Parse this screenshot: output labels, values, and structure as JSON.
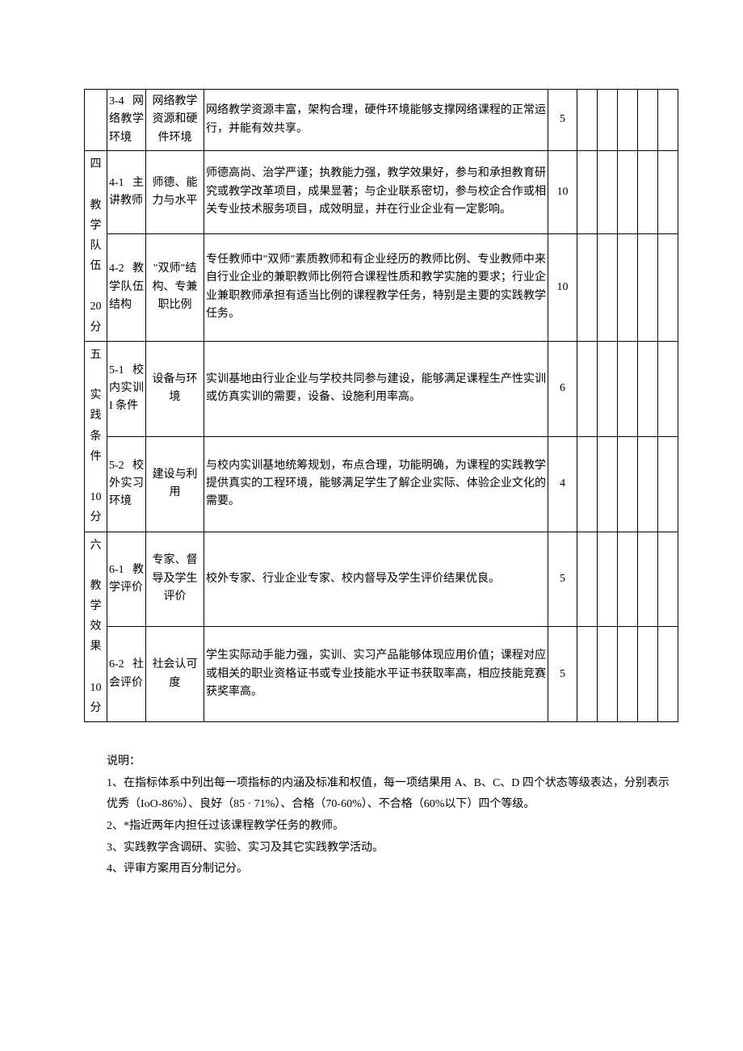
{
  "table": {
    "rows": [
      {
        "category": null,
        "sub": "3-4 网络教学环境",
        "metric": "网络教学资源和硬件环境",
        "desc": "网络教学资源丰富，架构合理，硬件环境能够支撑网络课程的正常运行，并能有效共享。",
        "score": "5"
      },
      {
        "category": "四\n\n教\n学\n队\n伍\n\n20\n分",
        "category_rowspan": 2,
        "sub": "4-1 主讲教师",
        "metric": "师德、能力与水平",
        "desc": "师德高尚、治学严谨；执教能力强，教学效果好，参与和承担教育研究或教学改革项目，成果显著；与企业联系密切，参与校企合作或相关专业技术服务项目，成效明显，并在行业企业有一定影响。",
        "score": "10"
      },
      {
        "category": null,
        "sub": "4-2 教学队伍结构",
        "metric": "\"双师\"结构、专兼职比例",
        "desc": "专任教师中\"双师\"素质教师和有企业经历的教师比例、专业教师中来自行业企业的兼职教师比例符合课程性质和教学实施的要求；行业企业兼职教师承担有适当比例的课程教学任务，特别是主要的实践教学任务。",
        "score": "10"
      },
      {
        "category": "五\n\n实\n践\n条\n件\n\n10\n分",
        "category_rowspan": 2,
        "sub": "5-1 校内实训 I 条件",
        "metric": "设备与环境",
        "desc": "实训基地由行业企业与学校共同参与建设，能够满足课程生产性实训或仿真实训的需要，设备、设施利用率高。",
        "score": "6"
      },
      {
        "category": null,
        "sub": "5-2 校外实习环境",
        "metric": "建设与利用",
        "desc": "与校内实训基地统筹规划，布点合理，功能明确，为课程的实践教学提供真实的工程环境，能够满足学生了解企业实际、体验企业文化的需要。",
        "score": "4"
      },
      {
        "category": "六\n\n教\n学\n效\n果\n\n10\n分",
        "category_rowspan": 2,
        "sub": "6-1 教学评价",
        "metric": "专家、督导及学生评价",
        "desc": "校外专家、行业企业专家、校内督导及学生评价结果优良。",
        "score": "5"
      },
      {
        "category": null,
        "sub": "6-2 社会评价",
        "metric": "社会认可度",
        "desc": "学生实际动手能力强，实训、实习产品能够体现应用价值；课程对应或相关的职业资格证书或专业技能水平证书获取率高，相应技能竞赛获奖率高。",
        "score": "5"
      }
    ]
  },
  "notes": {
    "heading": "说明：",
    "items": [
      "1、在指标体系中列出每一项指标的内涵及标准和权值，每一项结果用 A、B、C、D 四个状态等级表达，分别表示优秀（IoO-86%）、良好（85 · 71%）、合格（70-60%）、不合格（60%以下）四个等级。",
      "2、*指近两年内担任过该课程教学任务的教师。",
      "3、实践教学含调研、实验、实习及其它实践教学活动。",
      "4、评审方案用百分制记分。"
    ]
  }
}
